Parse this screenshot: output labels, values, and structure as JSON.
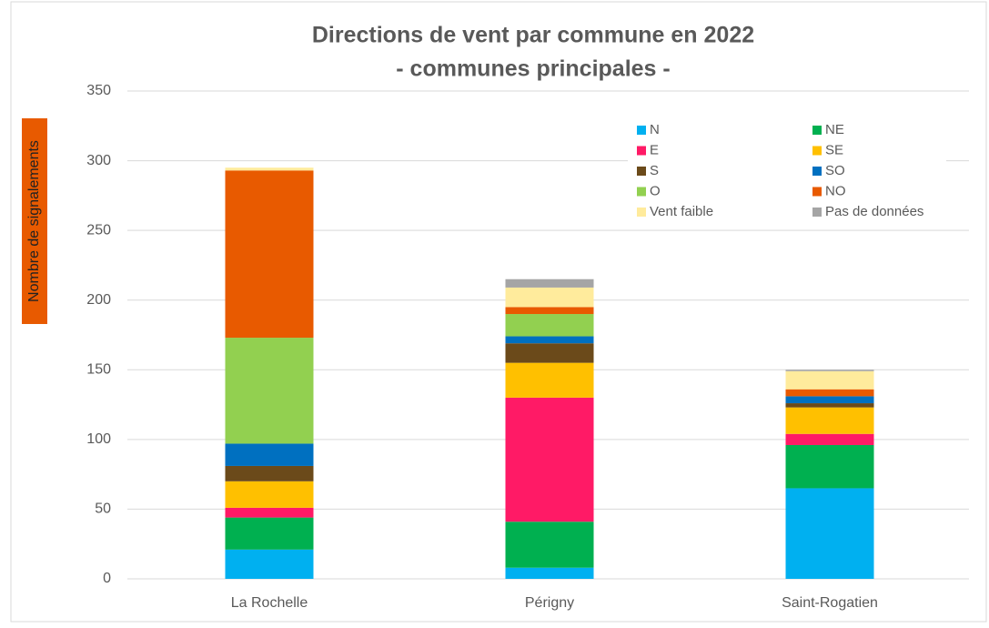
{
  "chart_data": {
    "type": "stacked_bar",
    "title": "Directions de vent par commune en 2022",
    "subtitle": "- communes principales -",
    "y_label": "Nombre de signalements",
    "categories": [
      "La Rochelle",
      "Périgny",
      "Saint-Rogatien"
    ],
    "series": [
      {
        "name": "N",
        "color": "#00b0f0",
        "values": [
          21,
          8,
          65
        ]
      },
      {
        "name": "NE",
        "color": "#00b050",
        "values": [
          23,
          33,
          31
        ]
      },
      {
        "name": "E",
        "color": "#ff1a66",
        "values": [
          7,
          89,
          8
        ]
      },
      {
        "name": "SE",
        "color": "#ffc000",
        "values": [
          19,
          25,
          19
        ]
      },
      {
        "name": "S",
        "color": "#6b4a1a",
        "values": [
          11,
          14,
          3
        ]
      },
      {
        "name": "SO",
        "color": "#0070c0",
        "values": [
          16,
          5,
          5
        ]
      },
      {
        "name": "O",
        "color": "#92d050",
        "values": [
          76,
          16,
          0
        ]
      },
      {
        "name": "NO",
        "color": "#e85a00",
        "values": [
          120,
          5,
          5
        ]
      },
      {
        "name": "Vent faible",
        "color": "#ffeb9c",
        "values": [
          2,
          14,
          13
        ]
      },
      {
        "name": "Pas de données",
        "color": "#a5a5a5",
        "values": [
          0,
          6,
          1
        ]
      }
    ],
    "ylim": [
      0,
      350
    ],
    "yticks": [
      0,
      50,
      100,
      150,
      200,
      250,
      300,
      350
    ],
    "grid": true
  }
}
